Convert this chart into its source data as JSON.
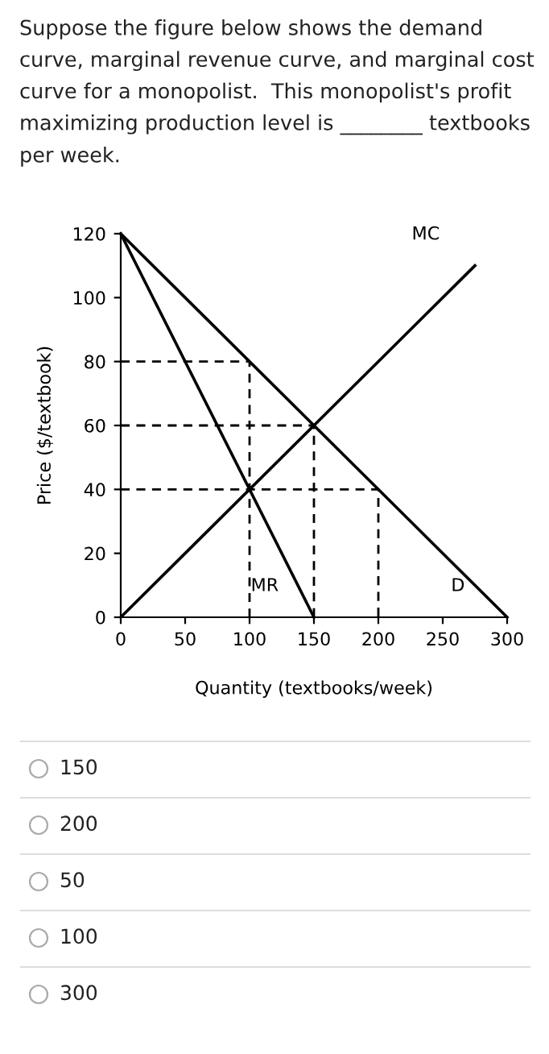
{
  "chart_data": {
    "type": "line",
    "title": "Suppose the figure below shows the demand curve, marginal revenue curve, and marginal cost curve for a monopolist.  This monopolist's profit maximizing production level is ________ textbooks per week.",
    "xlabel": "Quantity (textbooks/week)",
    "ylabel": "Price ($/textbook)",
    "xlim": [
      0,
      300
    ],
    "ylim": [
      0,
      120
    ],
    "xticks": [
      0,
      50,
      100,
      150,
      200,
      250,
      300
    ],
    "yticks": [
      0,
      20,
      40,
      60,
      80,
      100,
      120
    ],
    "grid": false,
    "legend": false,
    "marker": "none",
    "line_style": "solid",
    "series": [
      {
        "name": "D",
        "color": "#000000",
        "x": [
          0,
          300
        ],
        "values": [
          120,
          0
        ]
      },
      {
        "name": "MR",
        "color": "#000000",
        "x": [
          0,
          150
        ],
        "values": [
          120,
          0
        ]
      },
      {
        "name": "MC",
        "color": "#000000",
        "x": [
          0,
          275
        ],
        "values": [
          0,
          110
        ]
      },
      {
        "color": "#000000",
        "line_style": "dashed",
        "x": [
          0,
          100,
          100
        ],
        "values": [
          80,
          80,
          0
        ]
      },
      {
        "color": "#000000",
        "line_style": "dashed",
        "x": [
          0,
          150,
          150
        ],
        "values": [
          60,
          60,
          0
        ]
      },
      {
        "color": "#000000",
        "line_style": "dashed",
        "x": [
          0,
          200,
          200
        ],
        "values": [
          40,
          40,
          0
        ]
      }
    ],
    "annotations": [
      "150",
      "200",
      "50",
      "100",
      "300"
    ]
  }
}
